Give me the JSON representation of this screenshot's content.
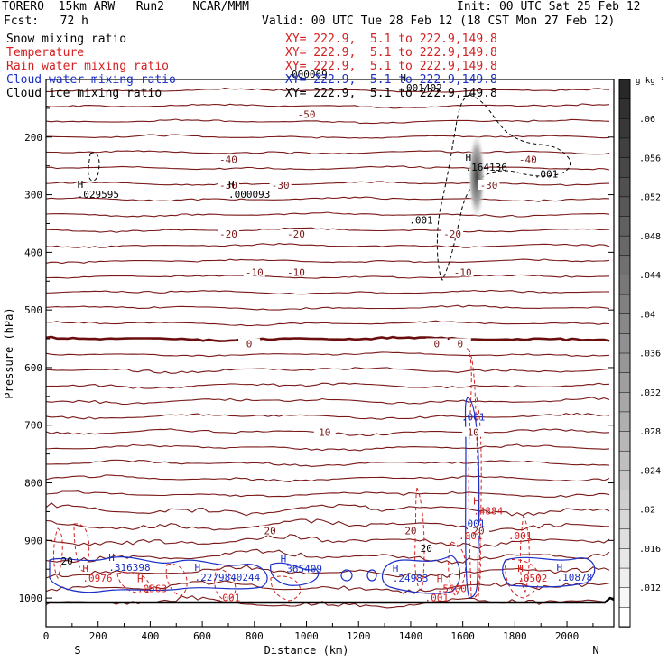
{
  "header": {
    "left1": "TORERO  15km ARW   Run2    NCAR/MMM",
    "left2": "Fcst:   72 h",
    "init": "Init: 00 UTC Sat 25 Feb 12",
    "valid": "Valid: 00 UTC Tue 28 Feb 12 (18 CST Mon 27 Feb 12)"
  },
  "legend": [
    {
      "name": "Snow mixing ratio",
      "color": "#000000",
      "xy": ""
    },
    {
      "name": "Temperature",
      "color": "#d42020",
      "xy": "XY= 222.9,  5.1 to 222.9,149.8"
    },
    {
      "name": "Rain water mixing ratio",
      "color": "#d42020",
      "xy": "XY= 222.9,  5.1 to 222.9,149.8"
    },
    {
      "name": "Cloud water mixing ratio",
      "color": "#1a2fc8",
      "xy": "XY= 222.9,  5.1 to 222.9,149.8"
    },
    {
      "name": "Cloud ice mixing ratio",
      "color": "#000000",
      "xy": "XY= 222.9,  5.1 to 222.9,149.8"
    }
  ],
  "legend_snow_xy": "XY= 222.9,  5.1 to 222.9,149.8",
  "colorbar": {
    "unit": "g kg⁻¹",
    "ticks": [
      ".06",
      ".056",
      ".052",
      ".048",
      ".044",
      ".04",
      ".036",
      ".032",
      ".028",
      ".024",
      ".02",
      ".016",
      ".012"
    ]
  },
  "chart_data": {
    "type": "contour cross-section",
    "xlabel": "Distance (km)",
    "ylabel": "Pressure (hPa)",
    "xlim": [
      0,
      2180
    ],
    "ylim": [
      1050,
      100
    ],
    "x_ticks": [
      "0",
      "200",
      "400",
      "600",
      "800",
      "1000",
      "1200",
      "1400",
      "1600",
      "1800",
      "2000"
    ],
    "y_ticks": [
      "200",
      "300",
      "400",
      "500",
      "600",
      "700",
      "800",
      "900",
      "1000"
    ],
    "x_end_labels": {
      "left": "S",
      "right": "N"
    },
    "temperature_contours": [
      {
        "label": "-50",
        "positions_km": [
          1000
        ],
        "p": 162
      },
      {
        "label": "-40",
        "positions_km": [
          700,
          1850
        ],
        "p": 240
      },
      {
        "label": "-30",
        "positions_km": [
          700,
          900,
          1700
        ],
        "p": 285
      },
      {
        "label": "-20",
        "positions_km": [
          700,
          960,
          1560
        ],
        "p": 370
      },
      {
        "label": "-10",
        "positions_km": [
          800,
          960,
          1600
        ],
        "p": 436
      },
      {
        "label": "0",
        "positions_km": [
          780,
          1500,
          1590
        ],
        "p": 560
      },
      {
        "label": "10",
        "positions_km": [
          1070,
          1640
        ],
        "p": 714
      },
      {
        "label": "20",
        "positions_km": [
          860,
          1400,
          1660
        ],
        "p": 885
      }
    ],
    "extrema_labels": [
      {
        "label": "H",
        "value": ".001402",
        "x_km": 1360,
        "p": 120,
        "color": "black"
      },
      {
        "label": "H",
        "value": ".029595",
        "x_km": 120,
        "p": 305,
        "color": "black"
      },
      {
        "label": "H",
        "value": ".000093",
        "x_km": 700,
        "p": 305,
        "color": "black"
      },
      {
        "label": "",
        "value": ".000069",
        "x_km": 920,
        "p": 97,
        "color": "black"
      },
      {
        "label": "H",
        "value": ".164136",
        "x_km": 1610,
        "p": 258,
        "color": "black"
      },
      {
        "label": "H",
        "value": ".316398",
        "x_km": 240,
        "p": 953,
        "color": "blue"
      },
      {
        "label": "H",
        "value": ".2279840244",
        "x_km": 570,
        "p": 970,
        "color": "blue"
      },
      {
        "label": "H",
        "value": ".365409",
        "x_km": 900,
        "p": 955,
        "color": "blue"
      },
      {
        "label": "H",
        "value": ".24983",
        "x_km": 1330,
        "p": 972,
        "color": "blue"
      },
      {
        "label": "H",
        "value": ".10878",
        "x_km": 1960,
        "p": 970,
        "color": "blue"
      },
      {
        "label": "H",
        "value": ".4884",
        "x_km": 1640,
        "p": 855,
        "color": "red"
      },
      {
        "label": "H",
        "value": ".0976",
        "x_km": 140,
        "p": 972,
        "color": "red"
      },
      {
        "label": "H",
        "value": ".0563",
        "x_km": 350,
        "p": 990,
        "color": "red"
      },
      {
        "label": "H",
        "value": ".5600",
        "x_km": 1500,
        "p": 990,
        "color": "red"
      },
      {
        "label": "H",
        "value": ".0502",
        "x_km": 1810,
        "p": 972,
        "color": "red"
      }
    ],
    "small_labels": [
      {
        "text": ".001",
        "x_km": 1440,
        "p": 350,
        "color": "black"
      },
      {
        "text": ".001",
        "x_km": 1920,
        "p": 270,
        "color": "black"
      },
      {
        "text": ".001",
        "x_km": 1640,
        "p": 692,
        "color": "blue"
      },
      {
        "text": ".001",
        "x_km": 1640,
        "p": 877,
        "color": "blue"
      },
      {
        "text": ".001",
        "x_km": 1630,
        "p": 898,
        "color": "red"
      },
      {
        "text": ".001",
        "x_km": 1820,
        "p": 898,
        "color": "red"
      },
      {
        "text": ".001",
        "x_km": 700,
        "p": 1005,
        "color": "red"
      },
      {
        "text": ".001",
        "x_km": 1500,
        "p": 1005,
        "color": "red"
      },
      {
        "text": "20",
        "x_km": 80,
        "p": 942,
        "color": "black"
      },
      {
        "text": "20",
        "x_km": 1460,
        "p": 920,
        "color": "black"
      }
    ]
  }
}
